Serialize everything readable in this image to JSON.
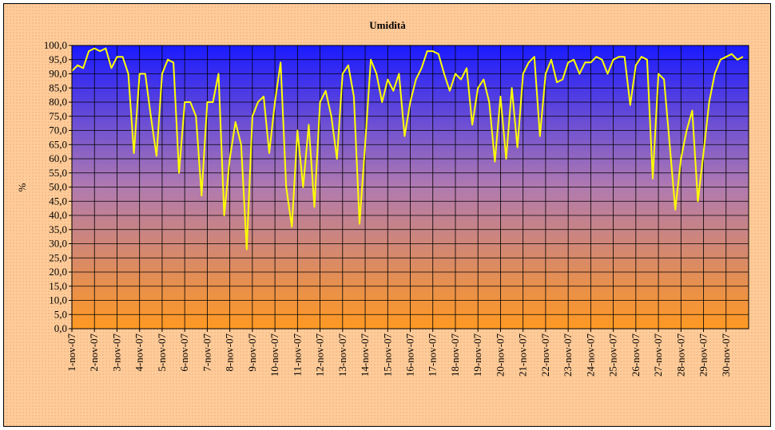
{
  "chart_data": {
    "type": "line",
    "title": "Umidità",
    "y_label": "%",
    "categories": [
      "1-nov-07",
      null,
      null,
      null,
      "2-nov-07",
      null,
      null,
      null,
      "3-nov-07",
      null,
      null,
      null,
      "4-nov-07",
      null,
      null,
      null,
      "5-nov-07",
      null,
      null,
      null,
      "6-nov-07",
      null,
      null,
      null,
      "7-nov-07",
      null,
      null,
      null,
      "8-nov-07",
      null,
      null,
      null,
      "9-nov-07",
      null,
      null,
      null,
      "10-nov-07",
      null,
      null,
      null,
      "11-nov-07",
      null,
      null,
      null,
      "12-nov-07",
      null,
      null,
      null,
      "13-nov-07",
      null,
      null,
      null,
      "14-nov-07",
      null,
      null,
      null,
      "15-nov-07",
      null,
      null,
      null,
      "16-nov-07",
      null,
      null,
      null,
      "17-nov-07",
      null,
      null,
      null,
      "18-nov-07",
      null,
      null,
      null,
      "19-nov-07",
      null,
      null,
      null,
      "20-nov-07",
      null,
      null,
      null,
      "21-nov-07",
      null,
      null,
      null,
      "22-nov-07",
      null,
      null,
      null,
      "23-nov-07",
      null,
      null,
      null,
      "24-nov-07",
      null,
      null,
      null,
      "25-nov-07",
      null,
      null,
      null,
      "26-nov-07",
      null,
      null,
      null,
      "27-nov-07",
      null,
      null,
      null,
      "28-nov-07",
      null,
      null,
      null,
      "29-nov-07",
      null,
      null,
      null,
      "30-nov-07",
      null,
      null,
      null
    ],
    "series": [
      {
        "name": "Umidità",
        "color": "#ffff00",
        "values": [
          91,
          93,
          92,
          98,
          99,
          98,
          99,
          92,
          96,
          96,
          90,
          62,
          90,
          90,
          75,
          61,
          90,
          95,
          94,
          55,
          80,
          80,
          75,
          47,
          80,
          80,
          90,
          40,
          60,
          73,
          65,
          28,
          75,
          80,
          82,
          62,
          80,
          94,
          50,
          36,
          70,
          50,
          72,
          43,
          80,
          84,
          75,
          60,
          90,
          93,
          82,
          37,
          65,
          95,
          90,
          80,
          88,
          84,
          90,
          68,
          80,
          88,
          92,
          98,
          98,
          97,
          90,
          84,
          90,
          88,
          92,
          72,
          85,
          88,
          80,
          59,
          82,
          60,
          85,
          64,
          90,
          94,
          96,
          68,
          90,
          95,
          87,
          88,
          94,
          95,
          90,
          94,
          94,
          96,
          95,
          90,
          95,
          96,
          96,
          79,
          93,
          96,
          95,
          53,
          90,
          88,
          65,
          42,
          60,
          70,
          77,
          45,
          62,
          80,
          90,
          95,
          96,
          97,
          95,
          96
        ]
      }
    ],
    "ylim": [
      0,
      100
    ],
    "yticks": [
      {
        "value": 0,
        "label": "0,0"
      },
      {
        "value": 5,
        "label": "5,0"
      },
      {
        "value": 10,
        "label": "10,0"
      },
      {
        "value": 15,
        "label": "15,0"
      },
      {
        "value": 20,
        "label": "20,0"
      },
      {
        "value": 25,
        "label": "25,0"
      },
      {
        "value": 30,
        "label": "30,0"
      },
      {
        "value": 35,
        "label": "35,0"
      },
      {
        "value": 40,
        "label": "40,0"
      },
      {
        "value": 45,
        "label": "45,0"
      },
      {
        "value": 50,
        "label": "50,0"
      },
      {
        "value": 55,
        "label": "55,0"
      },
      {
        "value": 60,
        "label": "60,0"
      },
      {
        "value": 65,
        "label": "65,0"
      },
      {
        "value": 70,
        "label": "70,0"
      },
      {
        "value": 75,
        "label": "75,0"
      },
      {
        "value": 80,
        "label": "80,0"
      },
      {
        "value": 85,
        "label": "85,0"
      },
      {
        "value": 90,
        "label": "90,0"
      },
      {
        "value": 95,
        "label": "95,0"
      },
      {
        "value": 100,
        "label": "100,0"
      }
    ],
    "grid": true
  }
}
